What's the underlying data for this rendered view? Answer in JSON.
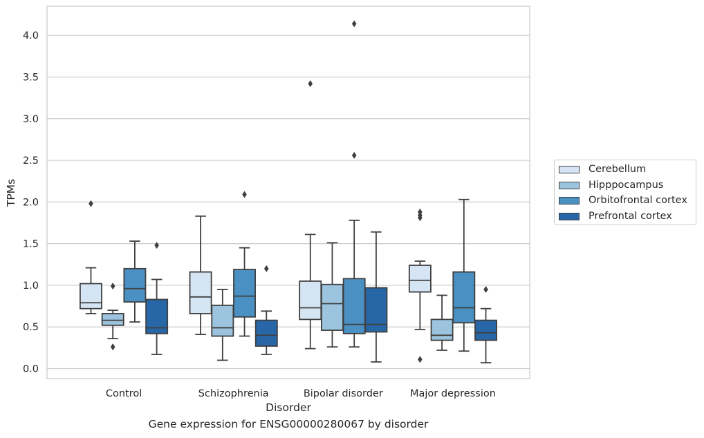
{
  "chart_data": {
    "type": "box",
    "title": "",
    "xlabel": "Disorder",
    "ylabel": "TPMs",
    "caption": "Gene expression for ENSG00000280067 by disorder",
    "ylim": [
      -0.12,
      4.35
    ],
    "yticks": [
      "0.0",
      "0.5",
      "1.0",
      "1.5",
      "2.0",
      "2.5",
      "3.0",
      "3.5",
      "4.0"
    ],
    "grid": "horizontal",
    "legend_position": "right",
    "categories": [
      "Control",
      "Schizophrenia",
      "Bipolar disorder",
      "Major depression"
    ],
    "series": [
      {
        "name": "Cerebellum",
        "color": "#d6e5f3",
        "boxes": [
          {
            "min": 0.66,
            "q1": 0.72,
            "median": 0.79,
            "q3": 1.02,
            "max": 1.21,
            "outliers": [
              1.98
            ]
          },
          {
            "min": 0.41,
            "q1": 0.66,
            "median": 0.86,
            "q3": 1.16,
            "max": 1.83,
            "outliers": []
          },
          {
            "min": 0.24,
            "q1": 0.59,
            "median": 0.73,
            "q3": 1.05,
            "max": 1.61,
            "outliers": [
              3.42
            ]
          },
          {
            "min": 0.47,
            "q1": 0.92,
            "median": 1.06,
            "q3": 1.24,
            "max": 1.29,
            "outliers": [
              1.81,
              1.84,
              1.88,
              0.11
            ]
          }
        ]
      },
      {
        "name": "Hipppocampus",
        "color": "#9cc4de",
        "boxes": [
          {
            "min": 0.36,
            "q1": 0.52,
            "median": 0.58,
            "q3": 0.66,
            "max": 0.7,
            "outliers": [
              0.99,
              0.26
            ]
          },
          {
            "min": 0.1,
            "q1": 0.39,
            "median": 0.49,
            "q3": 0.76,
            "max": 0.95,
            "outliers": []
          },
          {
            "min": 0.26,
            "q1": 0.46,
            "median": 0.78,
            "q3": 1.01,
            "max": 1.51,
            "outliers": []
          },
          {
            "min": 0.22,
            "q1": 0.34,
            "median": 0.4,
            "q3": 0.59,
            "max": 0.88,
            "outliers": []
          }
        ]
      },
      {
        "name": "Orbitofrontal cortex",
        "color": "#4a90c2",
        "boxes": [
          {
            "min": 0.56,
            "q1": 0.8,
            "median": 0.96,
            "q3": 1.2,
            "max": 1.53,
            "outliers": []
          },
          {
            "min": 0.39,
            "q1": 0.62,
            "median": 0.87,
            "q3": 1.19,
            "max": 1.45,
            "outliers": [
              2.09
            ]
          },
          {
            "min": 0.26,
            "q1": 0.42,
            "median": 0.53,
            "q3": 1.08,
            "max": 1.78,
            "outliers": [
              2.56,
              4.14
            ]
          },
          {
            "min": 0.21,
            "q1": 0.55,
            "median": 0.73,
            "q3": 1.16,
            "max": 2.03,
            "outliers": []
          }
        ]
      },
      {
        "name": "Prefrontal cortex",
        "color": "#2767a8",
        "boxes": [
          {
            "min": 0.17,
            "q1": 0.42,
            "median": 0.49,
            "q3": 0.83,
            "max": 1.07,
            "outliers": [
              1.48
            ]
          },
          {
            "min": 0.17,
            "q1": 0.27,
            "median": 0.4,
            "q3": 0.58,
            "max": 0.69,
            "outliers": [
              1.2
            ]
          },
          {
            "min": 0.08,
            "q1": 0.44,
            "median": 0.53,
            "q3": 0.97,
            "max": 1.64,
            "outliers": []
          },
          {
            "min": 0.07,
            "q1": 0.34,
            "median": 0.43,
            "q3": 0.58,
            "max": 0.72,
            "outliers": [
              0.95
            ]
          }
        ]
      }
    ]
  }
}
